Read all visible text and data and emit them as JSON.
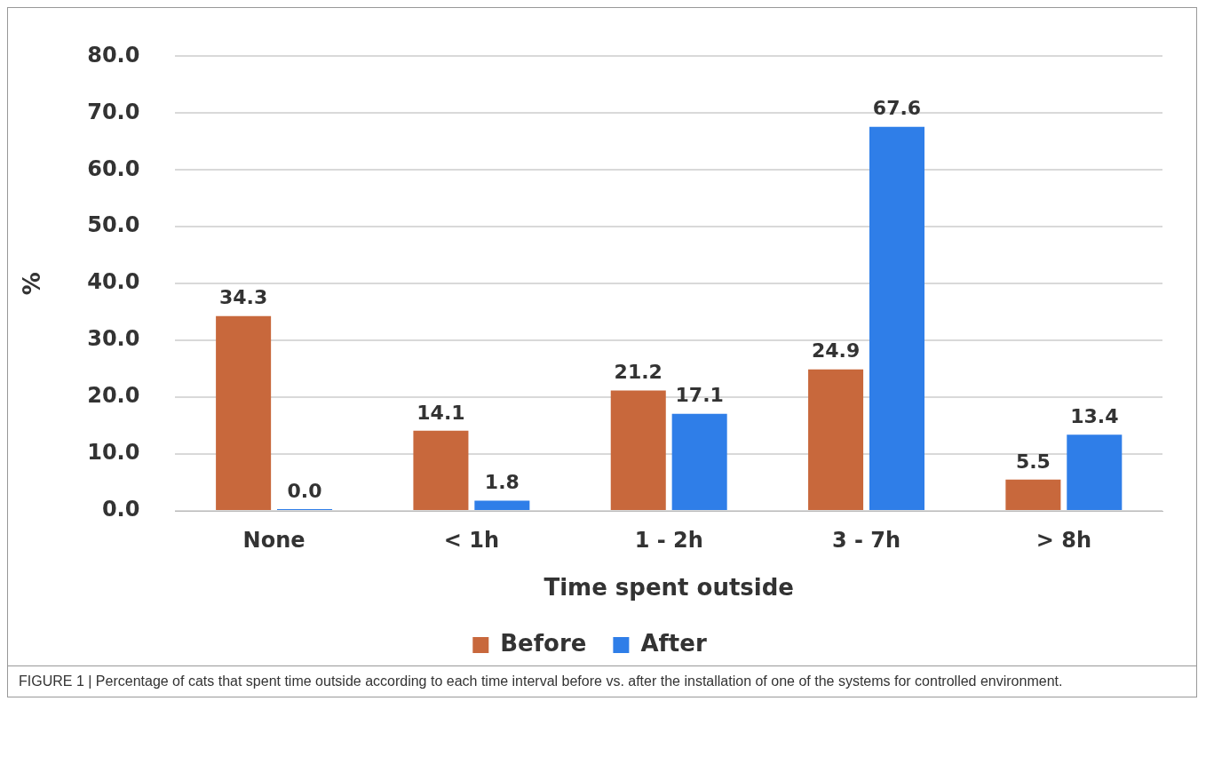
{
  "chart_data": {
    "type": "bar",
    "categories": [
      "None",
      "< 1h",
      "1 - 2h",
      "3 - 7h",
      "> 8h"
    ],
    "xlabel": "Time spent outside",
    "ylabel": "%",
    "series": [
      {
        "name": "Before",
        "color": "#c8683c",
        "values": [
          34.3,
          14.1,
          21.2,
          24.9,
          5.5
        ],
        "value_labels": [
          "34.3",
          "14.1",
          "21.2",
          "24.9",
          "5.5"
        ]
      },
      {
        "name": "After",
        "color": "#2f7ee8",
        "values": [
          0.0,
          1.8,
          17.1,
          67.6,
          13.4
        ],
        "value_labels": [
          "0.0",
          "1.8",
          "17.1",
          "67.6",
          "13.4"
        ]
      }
    ],
    "ylim": [
      0,
      80
    ],
    "yticks": [
      {
        "value": 0,
        "label": "0.0"
      },
      {
        "value": 10,
        "label": "10.0"
      },
      {
        "value": 20,
        "label": "20.0"
      },
      {
        "value": 30,
        "label": "30.0"
      },
      {
        "value": 40,
        "label": "40.0"
      },
      {
        "value": 50,
        "label": "50.0"
      },
      {
        "value": 60,
        "label": "60.0"
      },
      {
        "value": 70,
        "label": "70.0"
      },
      {
        "value": 80,
        "label": "80.0"
      }
    ],
    "grid": "y",
    "legend": "bottom",
    "annotations": [
      "FIGURE 1 | Percentage of cats that spent time outside according to each time interval before vs. after the installation of one of the systems for controlled environment."
    ]
  }
}
